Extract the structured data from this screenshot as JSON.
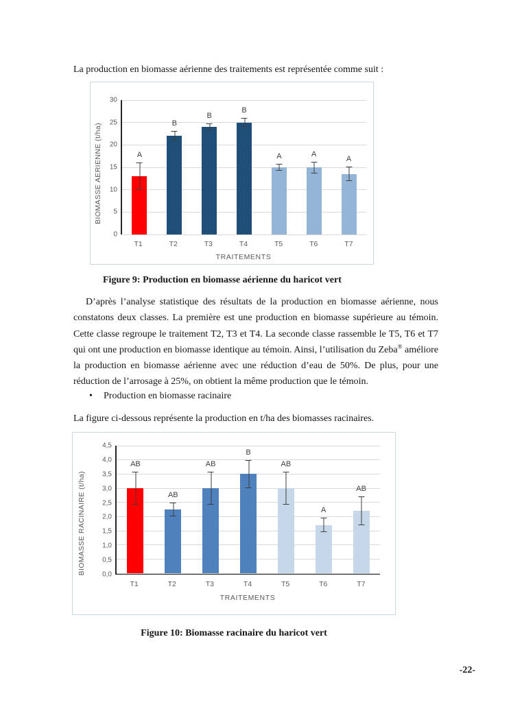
{
  "page": {
    "intro_text": "La production en biomasse aérienne des traitements est représentée comme suit :",
    "figure9_caption": "Figure 9: Production en biomasse aérienne du haricot vert",
    "paragraph": {
      "part1": "D’après l’analyse statistique des résultats de la production en biomasse aérienne, nous constatons deux classes. La première est une production en biomasse supérieure au témoin. Cette classe regroupe le traitement T2, T3 et T4. La seconde classe rassemble le T5, T6 et T7 qui ont une production en biomasse identique au témoin. Ainsi, l’utilisation du Zeba",
      "registered_mark": "®",
      "part2": " améliore la production en biomasse aérienne avec une réduction d’eau de 50%. De plus, pour une réduction de l’arrosage à 25%, on obtient la même production que le témoin."
    },
    "bullet_symbol": "•",
    "bullet_item": "Production en biomasse racinaire",
    "figure10_intro": "La figure ci-dessous représente la production en t/ha des biomasses racinaires.",
    "figure10_caption": "Figure 10: Biomasse racinaire du haricot vert",
    "page_number": "-22-"
  },
  "chart_data": [
    {
      "type": "bar",
      "title": "",
      "categories": [
        "T1",
        "T2",
        "T3",
        "T4",
        "T5",
        "T6",
        "T7"
      ],
      "values": [
        13,
        22,
        24,
        25,
        15,
        15,
        13.5
      ],
      "error_bars": [
        3,
        1.1,
        0.8,
        1,
        0.8,
        1.3,
        1.6
      ],
      "significance_letters": [
        "A",
        "B",
        "B",
        "B",
        "A",
        "A",
        "A"
      ],
      "bar_colors": [
        "#ff0000",
        "#1f4e79",
        "#1f4e79",
        "#1f4e79",
        "#94b5d8",
        "#94b5d8",
        "#94b5d8"
      ],
      "xlabel": "TRAITEMENTS",
      "ylabel": "BIOMASSE AERIENNE (t/ha)",
      "ylim": [
        0,
        30
      ],
      "ytick_labels": [
        "0",
        "5",
        "10",
        "15",
        "20",
        "25",
        "30"
      ],
      "grid": true,
      "legend": "none"
    },
    {
      "type": "bar",
      "title": "",
      "categories": [
        "T1",
        "T2",
        "T3",
        "T4",
        "T5",
        "T6",
        "T7"
      ],
      "values": [
        3.0,
        2.25,
        3.0,
        3.5,
        3.0,
        1.7,
        2.2
      ],
      "error_bars": [
        0.58,
        0.25,
        0.58,
        0.5,
        0.58,
        0.25,
        0.5
      ],
      "significance_letters": [
        "AB",
        "AB",
        "AB",
        "B",
        "AB",
        "A",
        "AB"
      ],
      "bar_colors": [
        "#ff0000",
        "#4f81bd",
        "#4f81bd",
        "#4f81bd",
        "#c7d7ea",
        "#c7d7ea",
        "#c7d7ea"
      ],
      "xlabel": "TRAITEMENTS",
      "ylabel": "BIOMASSE RACINAIRE (t/ha)",
      "ylim": [
        0,
        4.5
      ],
      "ytick_labels": [
        "0,0",
        "0,5",
        "1,0",
        "1,5",
        "2,0",
        "2,5",
        "3,0",
        "3,5",
        "4,0",
        "4,5"
      ],
      "grid": true,
      "legend": "none"
    }
  ]
}
